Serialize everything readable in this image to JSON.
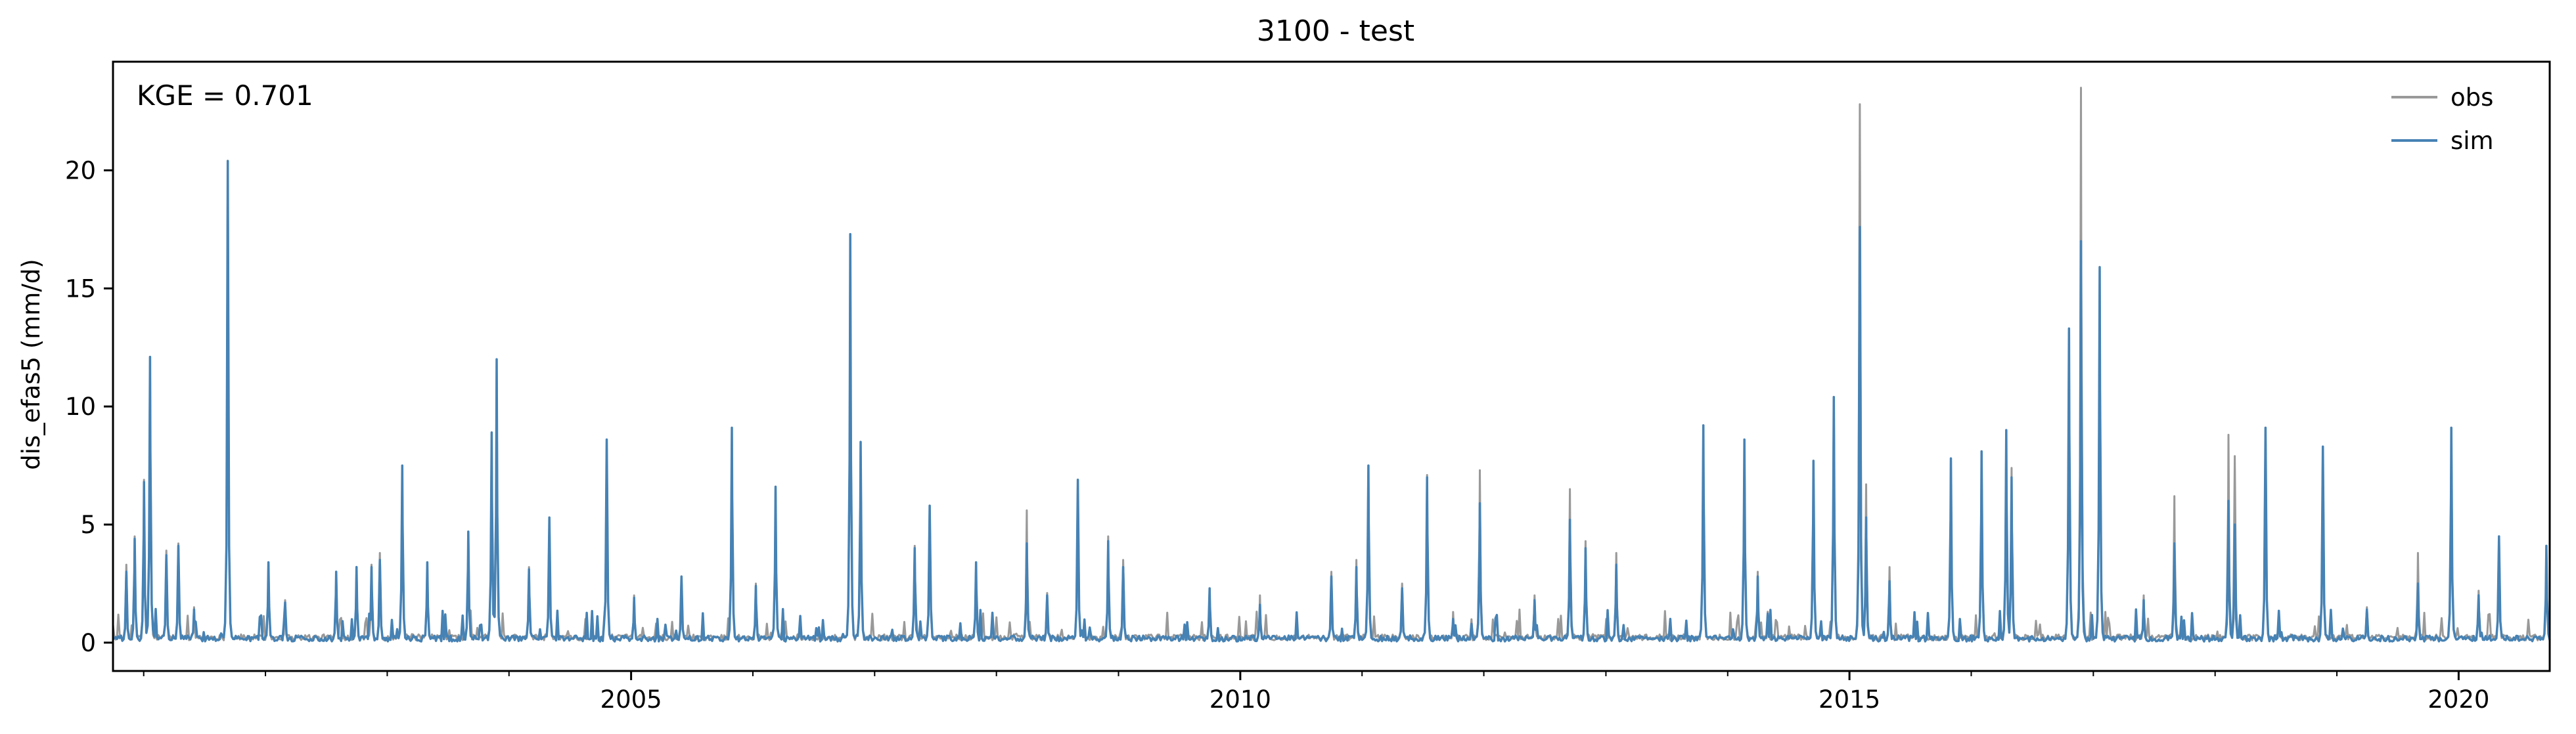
{
  "chart_data": {
    "type": "line",
    "title": "3100 - test",
    "xlabel": "",
    "ylabel": "dis_efas5 (mm/d)",
    "annotation": "KGE = 0.701",
    "xlim": [
      "2000-10-01",
      "2020-09-30"
    ],
    "ylim": [
      -1.2,
      24.6
    ],
    "x_ticks": [
      "2005",
      "2010",
      "2015",
      "2020"
    ],
    "y_ticks": [
      0,
      5,
      10,
      15,
      20
    ],
    "grid": false,
    "legend_position": "top-right",
    "series": [
      {
        "name": "obs",
        "color": "#999999",
        "baseline": 0.1,
        "peaks": [
          [
            "2000-11-10",
            3.3
          ],
          [
            "2000-12-05",
            4.5
          ],
          [
            "2001-01-02",
            6.9
          ],
          [
            "2001-01-20",
            12.1
          ],
          [
            "2001-03-10",
            3.9
          ],
          [
            "2001-04-15",
            4.2
          ],
          [
            "2001-06-01",
            1.5
          ],
          [
            "2001-09-10",
            20.4
          ],
          [
            "2002-01-10",
            3.4
          ],
          [
            "2002-03-01",
            1.8
          ],
          [
            "2002-08-01",
            3.0
          ],
          [
            "2002-10-01",
            3.2
          ],
          [
            "2002-11-15",
            3.3
          ],
          [
            "2002-12-10",
            3.8
          ],
          [
            "2003-02-15",
            7.5
          ],
          [
            "2003-05-01",
            3.4
          ],
          [
            "2003-09-01",
            4.7
          ],
          [
            "2003-11-10",
            8.9
          ],
          [
            "2003-11-25",
            12.0
          ],
          [
            "2004-03-01",
            3.2
          ],
          [
            "2004-05-01",
            5.3
          ],
          [
            "2004-10-20",
            8.6
          ],
          [
            "2005-01-10",
            2.0
          ],
          [
            "2005-06-01",
            2.8
          ],
          [
            "2005-10-30",
            9.1
          ],
          [
            "2006-01-10",
            2.5
          ],
          [
            "2006-03-10",
            6.6
          ],
          [
            "2006-10-20",
            17.3
          ],
          [
            "2006-11-20",
            8.5
          ],
          [
            "2007-05-01",
            4.1
          ],
          [
            "2007-06-15",
            5.8
          ],
          [
            "2007-11-01",
            3.4
          ],
          [
            "2008-04-01",
            5.6
          ],
          [
            "2008-06-01",
            2.1
          ],
          [
            "2008-09-01",
            6.9
          ],
          [
            "2008-12-01",
            4.5
          ],
          [
            "2009-01-15",
            3.5
          ],
          [
            "2009-10-01",
            2.3
          ],
          [
            "2010-03-01",
            2.0
          ],
          [
            "2010-10-01",
            3.0
          ],
          [
            "2010-12-15",
            3.5
          ],
          [
            "2011-01-20",
            7.5
          ],
          [
            "2011-05-01",
            2.5
          ],
          [
            "2011-07-15",
            7.1
          ],
          [
            "2011-10-01",
            1.3
          ],
          [
            "2011-12-20",
            7.3
          ],
          [
            "2012-06-01",
            2.0
          ],
          [
            "2012-09-15",
            6.5
          ],
          [
            "2012-11-01",
            4.3
          ],
          [
            "2013-02-01",
            3.8
          ],
          [
            "2013-10-20",
            9.2
          ],
          [
            "2014-02-20",
            8.6
          ],
          [
            "2014-04-01",
            3.0
          ],
          [
            "2014-09-15",
            7.7
          ],
          [
            "2014-11-15",
            10.4
          ],
          [
            "2015-02-01",
            22.8
          ],
          [
            "2015-02-20",
            6.7
          ],
          [
            "2015-05-01",
            3.2
          ],
          [
            "2015-11-01",
            7.8
          ],
          [
            "2016-02-01",
            8.1
          ],
          [
            "2016-04-15",
            9.0
          ],
          [
            "2016-05-01",
            7.4
          ],
          [
            "2016-10-20",
            13.0
          ],
          [
            "2016-11-25",
            23.5
          ],
          [
            "2017-01-20",
            15.9
          ],
          [
            "2017-06-01",
            2.0
          ],
          [
            "2017-09-01",
            6.2
          ],
          [
            "2018-02-10",
            8.8
          ],
          [
            "2018-03-01",
            7.9
          ],
          [
            "2018-06-01",
            9.1
          ],
          [
            "2018-11-20",
            8.3
          ],
          [
            "2019-04-01",
            1.5
          ],
          [
            "2019-09-01",
            3.8
          ],
          [
            "2019-12-10",
            9.1
          ],
          [
            "2020-03-01",
            2.2
          ],
          [
            "2020-05-01",
            4.5
          ],
          [
            "2020-09-20",
            4.1
          ]
        ]
      },
      {
        "name": "sim",
        "color": "#4682b4",
        "baseline": 0.05,
        "peaks": [
          [
            "2000-11-10",
            3.0
          ],
          [
            "2000-12-05",
            4.4
          ],
          [
            "2001-01-02",
            6.8
          ],
          [
            "2001-01-20",
            12.1
          ],
          [
            "2001-03-10",
            3.7
          ],
          [
            "2001-04-15",
            4.1
          ],
          [
            "2001-06-01",
            1.4
          ],
          [
            "2001-09-10",
            20.4
          ],
          [
            "2002-01-10",
            3.4
          ],
          [
            "2002-03-01",
            1.7
          ],
          [
            "2002-08-01",
            3.0
          ],
          [
            "2002-10-01",
            3.2
          ],
          [
            "2002-11-15",
            3.2
          ],
          [
            "2002-12-10",
            3.5
          ],
          [
            "2003-02-15",
            7.5
          ],
          [
            "2003-05-01",
            3.4
          ],
          [
            "2003-09-01",
            4.7
          ],
          [
            "2003-11-10",
            8.9
          ],
          [
            "2003-11-25",
            12.0
          ],
          [
            "2004-03-01",
            3.1
          ],
          [
            "2004-05-01",
            5.3
          ],
          [
            "2004-10-20",
            8.6
          ],
          [
            "2005-01-10",
            1.9
          ],
          [
            "2005-06-01",
            2.8
          ],
          [
            "2005-10-30",
            9.1
          ],
          [
            "2006-01-10",
            2.4
          ],
          [
            "2006-03-10",
            6.6
          ],
          [
            "2006-10-20",
            17.3
          ],
          [
            "2006-11-20",
            8.5
          ],
          [
            "2007-05-01",
            4.0
          ],
          [
            "2007-06-15",
            5.8
          ],
          [
            "2007-11-01",
            3.4
          ],
          [
            "2008-04-01",
            4.2
          ],
          [
            "2008-06-01",
            2.0
          ],
          [
            "2008-09-01",
            6.9
          ],
          [
            "2008-12-01",
            4.3
          ],
          [
            "2009-01-15",
            3.2
          ],
          [
            "2009-10-01",
            2.3
          ],
          [
            "2010-03-01",
            1.6
          ],
          [
            "2010-10-01",
            2.8
          ],
          [
            "2010-12-15",
            3.2
          ],
          [
            "2011-01-20",
            7.5
          ],
          [
            "2011-05-01",
            2.3
          ],
          [
            "2011-07-15",
            7.0
          ],
          [
            "2011-10-01",
            1.0
          ],
          [
            "2011-12-20",
            5.9
          ],
          [
            "2012-06-01",
            1.8
          ],
          [
            "2012-09-15",
            5.2
          ],
          [
            "2012-11-01",
            4.0
          ],
          [
            "2013-02-01",
            3.3
          ],
          [
            "2013-10-20",
            9.2
          ],
          [
            "2014-02-20",
            8.6
          ],
          [
            "2014-04-01",
            2.8
          ],
          [
            "2014-09-15",
            7.7
          ],
          [
            "2014-11-15",
            10.4
          ],
          [
            "2015-02-01",
            17.6
          ],
          [
            "2015-02-20",
            5.3
          ],
          [
            "2015-05-01",
            2.6
          ],
          [
            "2015-11-01",
            7.8
          ],
          [
            "2016-02-01",
            8.1
          ],
          [
            "2016-04-15",
            9.0
          ],
          [
            "2016-05-01",
            7.0
          ],
          [
            "2016-10-20",
            13.3
          ],
          [
            "2016-11-25",
            17.0
          ],
          [
            "2017-01-20",
            15.9
          ],
          [
            "2017-06-01",
            1.8
          ],
          [
            "2017-09-01",
            4.2
          ],
          [
            "2018-02-10",
            6.0
          ],
          [
            "2018-03-01",
            5.0
          ],
          [
            "2018-06-01",
            9.1
          ],
          [
            "2018-11-20",
            8.3
          ],
          [
            "2019-04-01",
            1.4
          ],
          [
            "2019-09-01",
            2.5
          ],
          [
            "2019-12-10",
            9.1
          ],
          [
            "2020-03-01",
            2.0
          ],
          [
            "2020-05-01",
            4.5
          ],
          [
            "2020-09-20",
            4.1
          ]
        ]
      }
    ]
  }
}
